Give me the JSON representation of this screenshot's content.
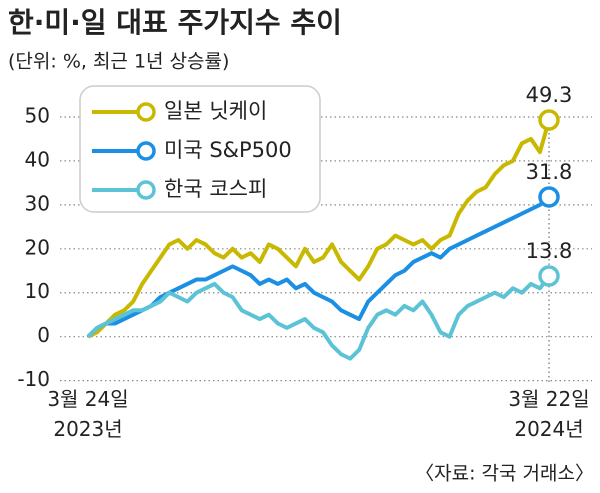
{
  "chart_data": {
    "type": "line",
    "title": "한·미·일 대표 주가지수 추이",
    "subtitle": "(단위: %, 최근 1년 상승률)",
    "source": "〈자료: 각국 거래소〉",
    "categories": [
      "3월 24일\n2023년",
      null,
      null,
      null,
      null,
      null,
      null,
      null,
      null,
      null,
      null,
      null,
      null,
      null,
      null,
      null,
      null,
      null,
      null,
      null,
      null,
      null,
      null,
      null,
      null,
      null,
      null,
      null,
      null,
      null,
      null,
      null,
      null,
      null,
      null,
      null,
      null,
      null,
      null,
      null,
      null,
      null,
      null,
      null,
      null,
      null,
      null,
      null,
      null,
      null,
      null,
      "3월 22일\n2024년"
    ],
    "series": [
      {
        "name": "일본 닛케이",
        "color": "#c9b800",
        "values": [
          0,
          1,
          3,
          5,
          6,
          8,
          12,
          15,
          18,
          21,
          22,
          20,
          22,
          21,
          19,
          18,
          20,
          18,
          19,
          17,
          21,
          20,
          18,
          16,
          20,
          17,
          18,
          21,
          17,
          15,
          13,
          16,
          20,
          21,
          23,
          22,
          21,
          22,
          20,
          22,
          23,
          28,
          31,
          33,
          34,
          37,
          39,
          40,
          44,
          45,
          42,
          49.3
        ]
      },
      {
        "name": "미국 S&P500",
        "color": "#1a8fe3",
        "values": [
          0,
          2,
          3,
          3,
          4,
          5,
          6,
          7,
          9,
          10,
          11,
          12,
          13,
          13,
          14,
          15,
          16,
          15,
          14,
          12,
          13,
          12,
          13,
          11,
          12,
          10,
          9,
          8,
          6,
          5,
          4,
          8,
          10,
          12,
          14,
          15,
          17,
          18,
          19,
          18,
          20,
          21,
          22,
          23,
          24,
          25,
          26,
          27,
          28,
          29,
          30,
          31.8
        ]
      },
      {
        "name": "한국 코스피",
        "color": "#5cc3d6",
        "values": [
          0,
          2,
          3,
          4,
          5,
          6,
          6,
          7,
          8,
          10,
          9,
          8,
          10,
          11,
          12,
          10,
          9,
          6,
          5,
          4,
          5,
          3,
          2,
          3,
          4,
          2,
          1,
          -2,
          -4,
          -5,
          -3,
          2,
          5,
          6,
          5,
          7,
          6,
          8,
          5,
          1,
          0,
          5,
          7,
          8,
          9,
          10,
          9,
          11,
          10,
          12,
          11,
          13.8
        ]
      }
    ],
    "ylim": [
      -11,
      55
    ],
    "yticks": [
      -10,
      0,
      10,
      20,
      30,
      40,
      50
    ],
    "grid": true
  }
}
